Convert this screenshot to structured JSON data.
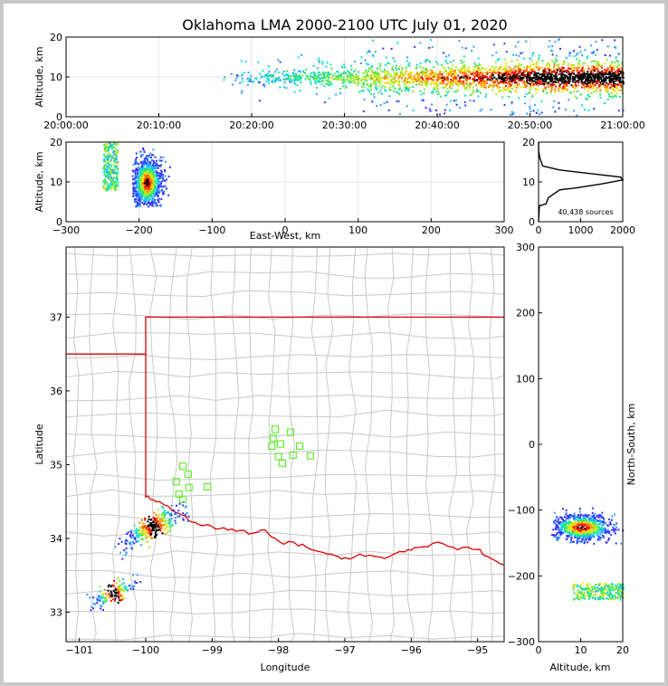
{
  "title": "Oklahoma LMA 2000-2100 UTC July 01, 2020",
  "colors": {
    "state_border": "#e00000",
    "county": "#c8c8c8",
    "station": "#66ee33",
    "grid": "#e6e6e6"
  },
  "chart_data": [
    {
      "id": "time_height",
      "type": "heatmap",
      "ylabel": "Altitude, km",
      "ylim": [
        0,
        20
      ],
      "yticks": [
        "0",
        "10",
        "20"
      ],
      "xticks": [
        "20:00:00",
        "20:10:00",
        "20:20:00",
        "20:30:00",
        "20:40:00",
        "20:50:00",
        "21:00:00"
      ],
      "xlim_minutes": [
        0,
        60
      ],
      "activity_start_minutes": 16.5,
      "main_layer_km": [
        6,
        14
      ],
      "core_altitude_km": 10
    },
    {
      "id": "ew_height",
      "type": "heatmap",
      "xlabel": "East-West, km",
      "ylabel": "Altitude, km",
      "xlim": [
        -300,
        300
      ],
      "ylim": [
        0,
        20
      ],
      "xticks": [
        "−300",
        "−200",
        "−100",
        "0",
        "100",
        "200",
        "300"
      ],
      "yticks": [
        "0",
        "10",
        "20"
      ],
      "clusters": [
        {
          "x_km": [
            -250,
            -230
          ],
          "alt_km": [
            8,
            20
          ]
        },
        {
          "x_km": [
            -210,
            -155
          ],
          "alt_km": [
            4,
            20
          ],
          "core_x_km": -190,
          "core_alt_km": 10
        }
      ]
    },
    {
      "id": "altitude_histogram",
      "type": "line",
      "xlim": [
        0,
        2000
      ],
      "ylim": [
        0,
        20
      ],
      "xticks": [
        "0",
        "1000",
        "2000"
      ],
      "yticks": [
        "0",
        "10",
        "20"
      ],
      "annotation": "40,438 sources",
      "profile": [
        {
          "alt": 0,
          "n": 0
        },
        {
          "alt": 4,
          "n": 20
        },
        {
          "alt": 4.5,
          "n": 180
        },
        {
          "alt": 6,
          "n": 230
        },
        {
          "alt": 8,
          "n": 500
        },
        {
          "alt": 8.5,
          "n": 900
        },
        {
          "alt": 9.5,
          "n": 1500
        },
        {
          "alt": 10.5,
          "n": 2000
        },
        {
          "alt": 11.2,
          "n": 1950
        },
        {
          "alt": 12,
          "n": 1300
        },
        {
          "alt": 13,
          "n": 500
        },
        {
          "alt": 14,
          "n": 100
        },
        {
          "alt": 16,
          "n": 30
        },
        {
          "alt": 18,
          "n": 0
        },
        {
          "alt": 20,
          "n": 0
        }
      ]
    },
    {
      "id": "plan_view",
      "type": "scatter",
      "xlabel": "Longitude",
      "ylabel": "Latitude",
      "xlim": [
        -101.2,
        -94.6
      ],
      "ylim": [
        32.6,
        37.95
      ],
      "xticks": [
        "−101",
        "−100",
        "−99",
        "−98",
        "−97",
        "−96",
        "−95"
      ],
      "yticks": [
        "33",
        "34",
        "35",
        "36",
        "37"
      ],
      "stations": [
        {
          "lon": -98.05,
          "lat": 35.48
        },
        {
          "lon": -97.82,
          "lat": 35.44
        },
        {
          "lon": -98.08,
          "lat": 35.36
        },
        {
          "lon": -97.97,
          "lat": 35.28
        },
        {
          "lon": -98.1,
          "lat": 35.25
        },
        {
          "lon": -97.68,
          "lat": 35.25
        },
        {
          "lon": -97.78,
          "lat": 35.13
        },
        {
          "lon": -98.0,
          "lat": 35.11
        },
        {
          "lon": -97.52,
          "lat": 35.12
        },
        {
          "lon": -97.94,
          "lat": 35.02
        },
        {
          "lon": -99.44,
          "lat": 34.98
        },
        {
          "lon": -99.36,
          "lat": 34.87
        },
        {
          "lon": -99.54,
          "lat": 34.77
        },
        {
          "lon": -99.35,
          "lat": 34.69
        },
        {
          "lon": -99.07,
          "lat": 34.7
        },
        {
          "lon": -99.5,
          "lat": 34.6
        },
        {
          "lon": -99.44,
          "lat": 34.53
        }
      ],
      "clusters": [
        {
          "lon": -99.9,
          "lat": 34.17,
          "orientation": "SW-NE"
        },
        {
          "lon": -100.5,
          "lat": 33.27,
          "orientation": "SW-NE"
        }
      ]
    },
    {
      "id": "ns_height",
      "type": "heatmap",
      "xlabel": "Altitude, km",
      "ylabel": "North-South, km",
      "xlim": [
        0,
        20
      ],
      "ylim": [
        -300,
        300
      ],
      "xticks": [
        "0",
        "10",
        "20"
      ],
      "yticks": [
        "−300",
        "−200",
        "−100",
        "0",
        "100",
        "200",
        "300"
      ],
      "clusters": [
        {
          "ns_km": [
            -150,
            -90
          ],
          "alt_km": [
            3,
            20
          ],
          "core_ns_km": -125,
          "core_alt_km": 10
        },
        {
          "ns_km": [
            -235,
            -210
          ],
          "alt_km": [
            8,
            20
          ]
        }
      ]
    }
  ]
}
